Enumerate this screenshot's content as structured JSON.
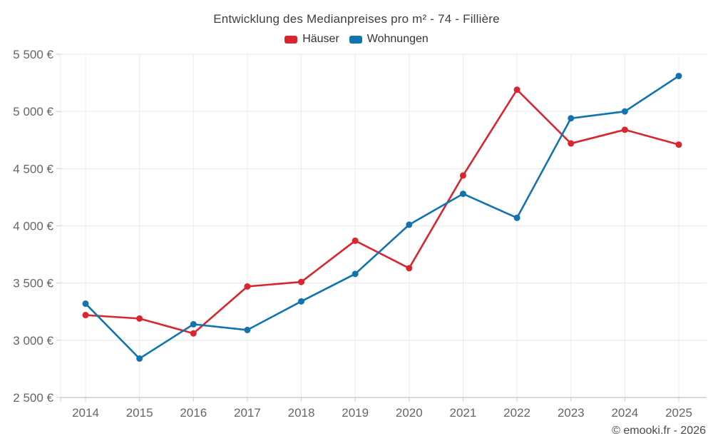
{
  "header": {
    "title": "Entwicklung des Medianpreises pro m² - 74 - Fillière"
  },
  "legend": {
    "items": [
      {
        "label": "Häuser",
        "color": "#d9252e"
      },
      {
        "label": "Wohnungen",
        "color": "#1173b0"
      }
    ]
  },
  "footer": {
    "credit": "© emooki.fr - 2026"
  },
  "chart_data": {
    "type": "line",
    "title": "Entwicklung des Medianpreises pro m² - 74 - Fillière",
    "xlabel": "",
    "ylabel": "",
    "categories": [
      "2014",
      "2015",
      "2016",
      "2017",
      "2018",
      "2019",
      "2020",
      "2021",
      "2022",
      "2023",
      "2024",
      "2025"
    ],
    "series": [
      {
        "name": "Häuser",
        "color": "#d9252e",
        "values": [
          3220,
          3190,
          3060,
          3470,
          3510,
          3870,
          3630,
          4440,
          5190,
          4720,
          4840,
          4710
        ]
      },
      {
        "name": "Wohnungen",
        "color": "#1173b0",
        "values": [
          3320,
          2840,
          3140,
          3090,
          3340,
          3580,
          4010,
          4280,
          4070,
          4940,
          5000,
          5310
        ]
      }
    ],
    "ylim": [
      2500,
      5500
    ],
    "y_tick_values": [
      2500,
      3000,
      3500,
      4000,
      4500,
      5000,
      5500
    ],
    "y_tick_labels": [
      "2 500 €",
      "3 000 €",
      "3 500 €",
      "4 000 €",
      "4 500 €",
      "5 000 €",
      "5 500 €"
    ],
    "grid": true,
    "legend_position": "top",
    "marker": "circle"
  }
}
